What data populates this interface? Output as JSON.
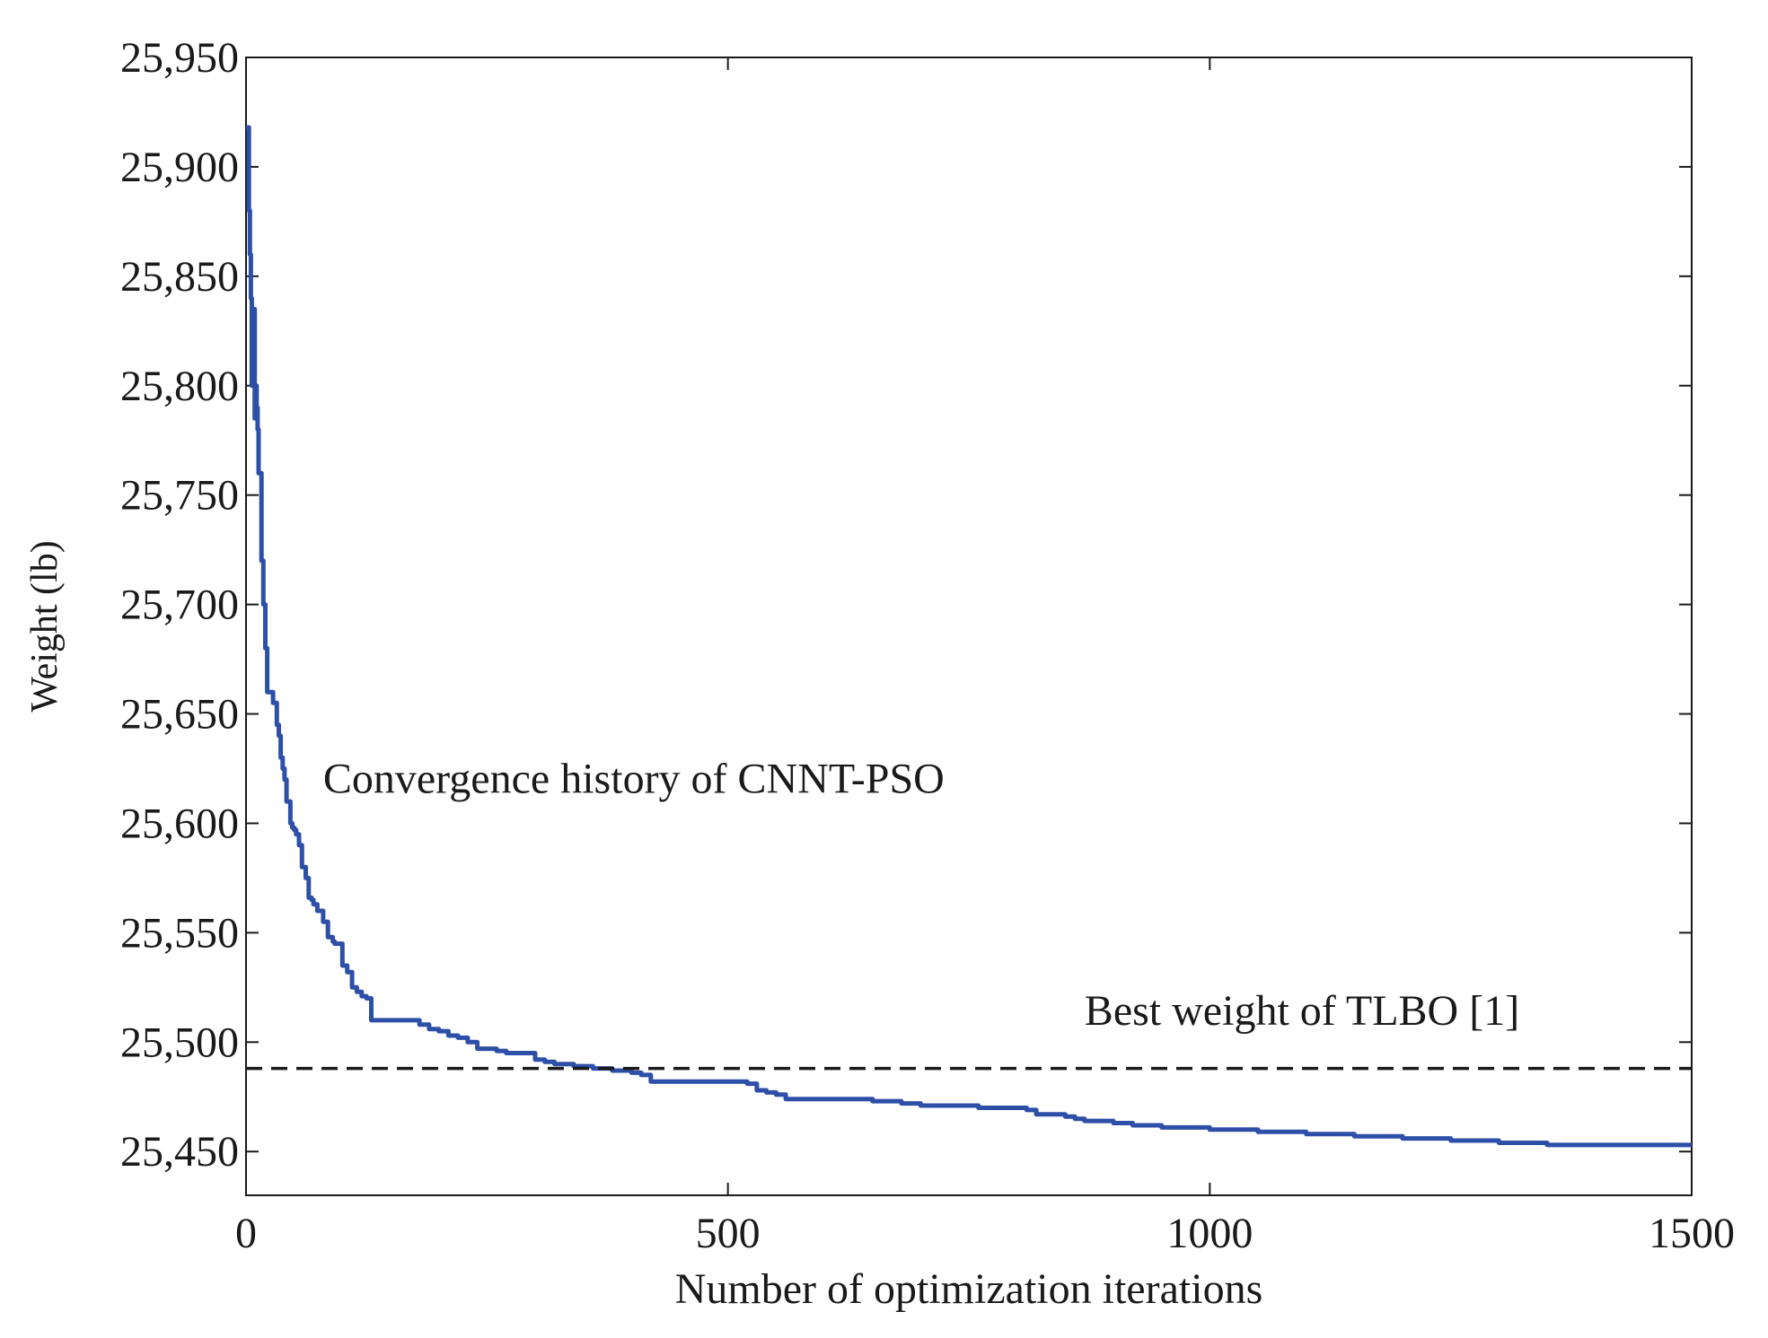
{
  "chart_data": {
    "type": "line",
    "title": "",
    "xlabel": "Number of optimization iterations",
    "ylabel": "Weight (lb)",
    "xlim": [
      0,
      1500
    ],
    "ylim": [
      25430,
      25950
    ],
    "x_ticks": [
      0,
      500,
      1000,
      1500
    ],
    "x_tick_labels": [
      "0",
      "500",
      "1000",
      "1500"
    ],
    "y_ticks": [
      25450,
      25500,
      25550,
      25600,
      25650,
      25700,
      25750,
      25800,
      25850,
      25900,
      25950
    ],
    "y_tick_labels": [
      "25,450",
      "25,500",
      "25,550",
      "25,600",
      "25,650",
      "25,700",
      "25,750",
      "25,800",
      "25,850",
      "25,900",
      "25,950"
    ],
    "grid": false,
    "series": [
      {
        "name": "Convergence history of CNNT-PSO",
        "color": "#2e4fa8",
        "style": "solid",
        "x": [
          0,
          2,
          3,
          4,
          5,
          6,
          7,
          9,
          10,
          11,
          12,
          13,
          14,
          16,
          18,
          20,
          22,
          24,
          26,
          28,
          32,
          34,
          36,
          38,
          40,
          42,
          44,
          46,
          48,
          50,
          52,
          55,
          58,
          62,
          65,
          68,
          70,
          74,
          78,
          80,
          85,
          90,
          92,
          95,
          100,
          105,
          110,
          115,
          120,
          125,
          130,
          140,
          150,
          160,
          180,
          190,
          200,
          210,
          220,
          230,
          240,
          250,
          260,
          270,
          280,
          290,
          300,
          310,
          320,
          340,
          350,
          360,
          380,
          400,
          410,
          420,
          440,
          500,
          520,
          530,
          540,
          550,
          560,
          570,
          600,
          650,
          660,
          680,
          700,
          750,
          760,
          800,
          810,
          820,
          850,
          860,
          870,
          900,
          920,
          950,
          1000,
          1030,
          1050,
          1100,
          1150,
          1200,
          1250,
          1300,
          1350,
          1400,
          1500
        ],
        "y": [
          25918,
          25918,
          25880,
          25860,
          25840,
          25800,
          25835,
          25785,
          25800,
          25790,
          25780,
          25760,
          25760,
          25720,
          25700,
          25680,
          25660,
          25660,
          25660,
          25655,
          25645,
          25640,
          25630,
          25625,
          25620,
          25610,
          25610,
          25600,
          25598,
          25597,
          25595,
          25590,
          25580,
          25575,
          25566,
          25565,
          25563,
          25560,
          25560,
          25555,
          25548,
          25546,
          25545,
          25545,
          25535,
          25532,
          25525,
          25523,
          25521,
          25520,
          25510,
          25510,
          25510,
          25510,
          25508,
          25506,
          25505,
          25503,
          25502,
          25500,
          25497,
          25497,
          25496,
          25495,
          25495,
          25495,
          25492,
          25491,
          25490,
          25489,
          25489,
          25488,
          25487,
          25486,
          25485,
          25482,
          25482,
          25482,
          25481,
          25478,
          25477,
          25476,
          25474,
          25474,
          25474,
          25473,
          25473,
          25472,
          25471,
          25471,
          25470,
          25470,
          25469,
          25467,
          25466,
          25465,
          25464,
          25463,
          25462,
          25461,
          25460,
          25460,
          25459,
          25458,
          25457,
          25456,
          25455,
          25454,
          25453,
          25453,
          25453
        ]
      },
      {
        "name": "Best weight of TLBO [1]",
        "color": "#1a1a1a",
        "style": "dashed",
        "x": [
          0,
          1500
        ],
        "y": [
          25488,
          25488
        ]
      }
    ],
    "annotations": [
      {
        "text": "Convergence history of CNNT-PSO",
        "x": 80,
        "y": 25614
      },
      {
        "text": "Best weight of TLBO [1]",
        "x": 870,
        "y": 25508
      }
    ]
  }
}
